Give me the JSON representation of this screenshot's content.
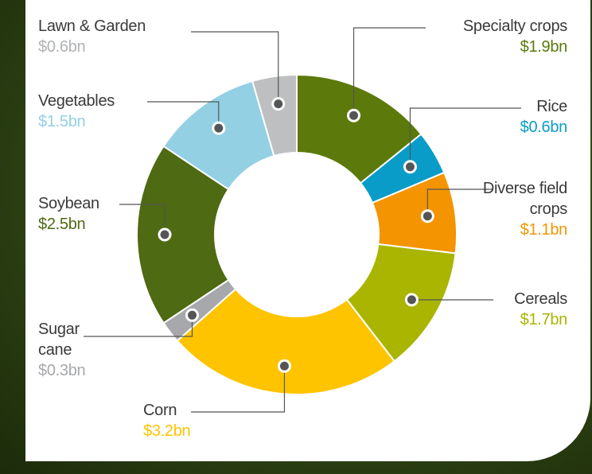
{
  "chart_data": {
    "type": "donut",
    "categories": [
      "Specialty crops",
      "Rice",
      "Diverse field crops",
      "Cereals",
      "Corn",
      "Sugar cane",
      "Soybean",
      "Vegetables",
      "Lawn & Garden"
    ],
    "values": [
      1.9,
      0.6,
      1.1,
      1.7,
      3.2,
      0.3,
      2.5,
      1.5,
      0.6
    ],
    "value_labels": [
      "$1.9bn",
      "$0.6bn",
      "$1.1bn",
      "$1.7bn",
      "$3.2bn",
      "$0.3bn",
      "$2.5bn",
      "$1.5bn",
      "$0.6bn"
    ],
    "colors": [
      "#5b7a0b",
      "#0a9cc8",
      "#f39400",
      "#a9b500",
      "#fec400",
      "#a6a8ab",
      "#4e6a12",
      "#93d0e4",
      "#bdbfc1"
    ],
    "value_label_colors": [
      "#5b7a0b",
      "#0a9cc8",
      "#f39400",
      "#a9b500",
      "#fec400",
      "#a6a8ab",
      "#4e6a12",
      "#93d0e4",
      "#b0b2b4"
    ]
  }
}
